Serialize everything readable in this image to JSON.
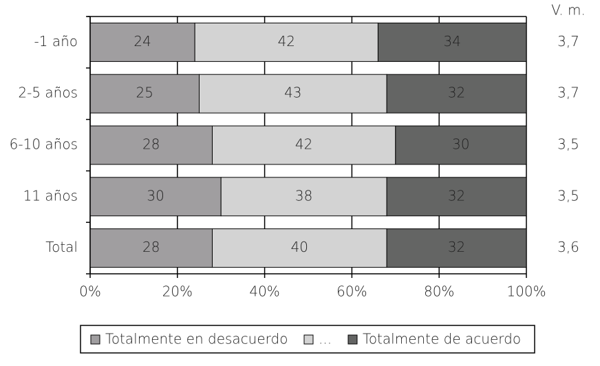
{
  "chart_data": {
    "type": "stacked-bar-horizontal",
    "categories": [
      "-1 año",
      "2-5 años",
      "6-10 años",
      "11 años",
      "Total"
    ],
    "series": [
      {
        "name": "Totalmente en desacuerdo",
        "color": "#a09ea0",
        "values": [
          24,
          25,
          28,
          30,
          28
        ]
      },
      {
        "name": "...",
        "color": "#d3d3d3",
        "values": [
          42,
          43,
          42,
          38,
          40
        ]
      },
      {
        "name": "Totalmente de acuerdo",
        "color": "#646564",
        "values": [
          34,
          32,
          30,
          32,
          32
        ]
      }
    ],
    "xlim": [
      0,
      100
    ],
    "xticks": [
      {
        "value": 0,
        "label": "0%"
      },
      {
        "value": 20,
        "label": "20%"
      },
      {
        "value": 40,
        "label": "40%"
      },
      {
        "value": 60,
        "label": "60%"
      },
      {
        "value": 80,
        "label": "80%"
      },
      {
        "value": 100,
        "label": "100%"
      }
    ],
    "grid": true,
    "legend": "bottom",
    "mean_title": "V. m.",
    "mean_values": [
      {
        "value": 3.7,
        "label": "3,7"
      },
      {
        "value": 3.7,
        "label": "3,7"
      },
      {
        "value": 3.5,
        "label": "3,5"
      },
      {
        "value": 3.5,
        "label": "3,5"
      },
      {
        "value": 3.6,
        "label": "3,6"
      }
    ]
  }
}
